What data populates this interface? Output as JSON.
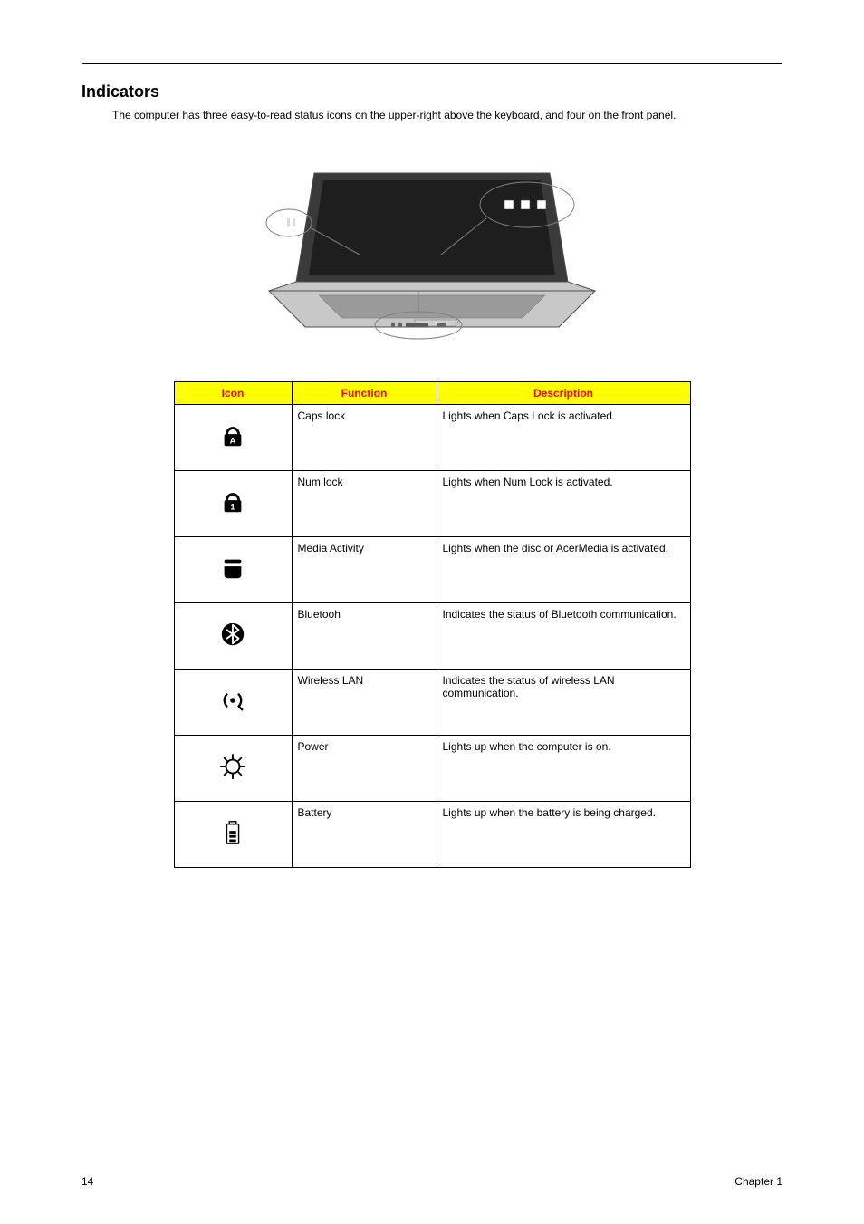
{
  "section": {
    "title": "Indicators",
    "intro": "The computer has three easy-to-read status icons on the upper-right above the keyboard, and four on the front panel."
  },
  "figure": {
    "body_fill": "#c8c8c8",
    "body_stroke": "#505050",
    "screen_fill": "#3a3a3a",
    "keyboard_fill": "#9a9a9a",
    "led_fill": "#ffffff",
    "callout_stroke": "#808080",
    "callout_fill": "#ffffff",
    "bg": "#ffffff"
  },
  "table": {
    "header_bg": "#ffff00",
    "header_color": "#ff0000",
    "border_color": "#000000",
    "col_widths": {
      "icon": 130,
      "function": 160,
      "description": 280
    },
    "headers": {
      "icon": "Icon",
      "function": "Function",
      "description": "Description"
    },
    "icon_fill": "#000000",
    "rows": [
      {
        "icon_name": "caps-lock-icon",
        "function": "Caps lock",
        "description": "Lights when Caps Lock is activated."
      },
      {
        "icon_name": "num-lock-icon",
        "function": "Num lock",
        "description": "Lights when Num Lock is activated."
      },
      {
        "icon_name": "media-icon",
        "function": "Media Activity",
        "description": "Lights when the disc or AcerMedia is activated."
      },
      {
        "icon_name": "bluetooth-icon",
        "function": "Bluetooh",
        "description": "Indicates the status of Bluetooth communication."
      },
      {
        "icon_name": "wireless-icon",
        "function": "Wireless LAN",
        "description": "Indicates the status of wireless LAN communication."
      },
      {
        "icon_name": "power-icon",
        "function": "Power",
        "description": "Lights up when the computer is on."
      },
      {
        "icon_name": "battery-icon",
        "function": "Battery",
        "description": "Lights up when the battery is being charged."
      }
    ]
  },
  "footer": {
    "page_number": "14",
    "chapter": "Chapter 1"
  }
}
